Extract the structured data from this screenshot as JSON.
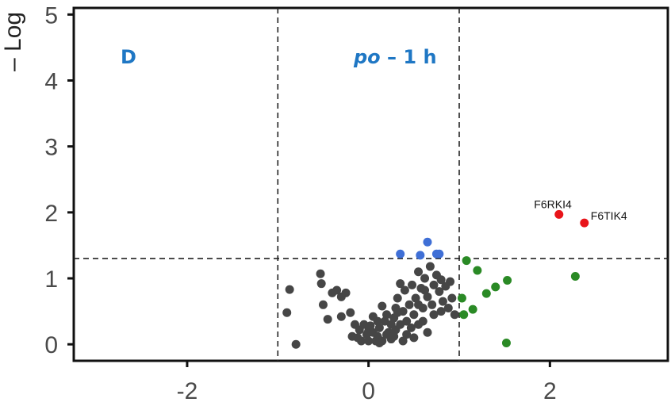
{
  "chart_data": {
    "type": "scatter",
    "ylabel": "– Log",
    "panel_label": "D",
    "condition_label": {
      "italic": "po",
      "rest": " – 1 h"
    },
    "xlim": [
      -3.25,
      3.3
    ],
    "ylim": [
      -0.25,
      5.1
    ],
    "x_ticks": [
      -2,
      0,
      2
    ],
    "y_ticks": [
      0,
      1,
      2,
      3,
      4,
      5
    ],
    "grid": false,
    "thresholds": {
      "x": [
        -1,
        1
      ],
      "y": 1.3
    },
    "colors": {
      "ns": "#464646",
      "p_only": "#3f6fd6",
      "fc_only": "#2a8a25",
      "both": "#e8141a",
      "label": "#1f77c4"
    },
    "series": [
      {
        "group": "ns",
        "points": [
          [
            -0.87,
            0.83
          ],
          [
            -0.9,
            0.48
          ],
          [
            -0.8,
            0.0
          ],
          [
            -0.53,
            1.07
          ],
          [
            -0.52,
            0.92
          ],
          [
            -0.5,
            0.6
          ],
          [
            -0.45,
            0.38
          ],
          [
            -0.4,
            0.78
          ],
          [
            -0.35,
            0.82
          ],
          [
            -0.3,
            0.72
          ],
          [
            -0.25,
            0.78
          ],
          [
            -0.3,
            0.42
          ],
          [
            -0.2,
            0.48
          ],
          [
            -0.15,
            0.3
          ],
          [
            -0.12,
            0.1
          ],
          [
            -0.1,
            0.22
          ],
          [
            -0.05,
            0.3
          ],
          [
            -0.02,
            0.15
          ],
          [
            0.0,
            0.05
          ],
          [
            0.02,
            0.28
          ],
          [
            0.05,
            0.18
          ],
          [
            0.08,
            0.05
          ],
          [
            0.1,
            0.12
          ],
          [
            0.12,
            0.25
          ],
          [
            0.15,
            0.05
          ],
          [
            0.18,
            0.35
          ],
          [
            0.2,
            0.45
          ],
          [
            0.22,
            0.18
          ],
          [
            0.25,
            0.08
          ],
          [
            0.28,
            0.4
          ],
          [
            0.3,
            0.55
          ],
          [
            0.3,
            0.22
          ],
          [
            0.32,
            0.7
          ],
          [
            0.35,
            0.92
          ],
          [
            0.35,
            0.3
          ],
          [
            0.38,
            0.5
          ],
          [
            0.4,
            0.82
          ],
          [
            0.42,
            0.35
          ],
          [
            0.45,
            0.6
          ],
          [
            0.48,
            0.9
          ],
          [
            0.5,
            0.45
          ],
          [
            0.52,
            0.7
          ],
          [
            0.55,
            0.3
          ],
          [
            0.55,
            1.1
          ],
          [
            0.58,
            0.85
          ],
          [
            0.6,
            0.55
          ],
          [
            0.62,
            1.0
          ],
          [
            0.65,
            0.72
          ],
          [
            0.68,
            1.18
          ],
          [
            0.7,
            0.6
          ],
          [
            0.72,
            0.9
          ],
          [
            0.75,
            1.05
          ],
          [
            0.78,
            0.8
          ],
          [
            0.8,
            0.98
          ],
          [
            0.82,
            0.65
          ],
          [
            0.85,
            0.88
          ],
          [
            0.88,
            0.55
          ],
          [
            0.9,
            0.95
          ],
          [
            0.92,
            0.7
          ],
          [
            0.95,
            0.45
          ],
          [
            0.6,
            0.35
          ],
          [
            0.65,
            0.18
          ],
          [
            0.42,
            0.15
          ],
          [
            0.28,
            0.12
          ],
          [
            0.05,
            0.42
          ],
          [
            0.15,
            0.58
          ],
          [
            0.47,
            0.25
          ],
          [
            0.72,
            0.45
          ],
          [
            0.2,
            0.15
          ],
          [
            0.38,
            0.05
          ],
          [
            0.1,
            0.35
          ],
          [
            -0.08,
            0.05
          ],
          [
            0.0,
            0.2
          ],
          [
            0.25,
            0.3
          ],
          [
            0.5,
            0.1
          ],
          [
            0.62,
            0.82
          ],
          [
            0.8,
            0.5
          ],
          [
            0.32,
            0.48
          ],
          [
            0.12,
            0.02
          ],
          [
            -0.18,
            0.12
          ],
          [
            0.55,
            0.6
          ]
        ]
      },
      {
        "group": "p_only",
        "points": [
          [
            0.35,
            1.37
          ],
          [
            0.57,
            1.35
          ],
          [
            0.65,
            1.55
          ],
          [
            0.75,
            1.37
          ],
          [
            0.78,
            1.37
          ]
        ]
      },
      {
        "group": "fc_only",
        "points": [
          [
            1.03,
            0.7
          ],
          [
            1.05,
            0.45
          ],
          [
            1.08,
            1.27
          ],
          [
            1.15,
            0.53
          ],
          [
            1.2,
            1.12
          ],
          [
            1.3,
            0.77
          ],
          [
            1.4,
            0.87
          ],
          [
            1.53,
            0.97
          ],
          [
            1.52,
            0.02
          ],
          [
            2.28,
            1.03
          ]
        ]
      },
      {
        "group": "both",
        "points": [
          [
            2.1,
            1.97,
            "F6RKI4"
          ],
          [
            2.38,
            1.84,
            "F6TIK4"
          ]
        ]
      }
    ]
  }
}
